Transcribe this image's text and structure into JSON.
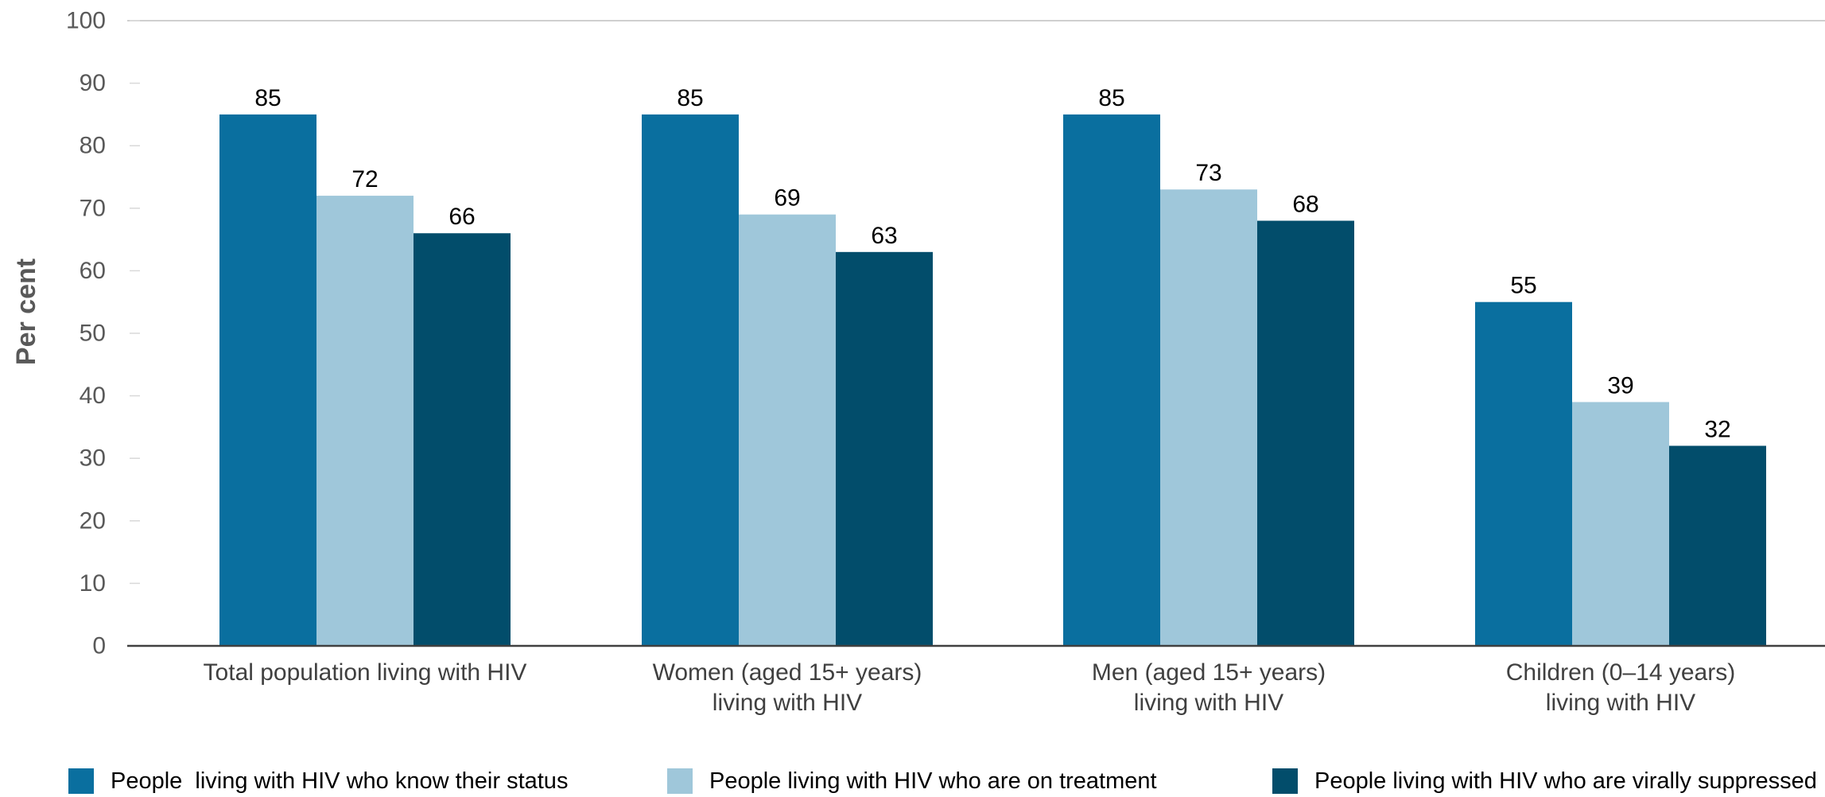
{
  "chart_data": {
    "type": "bar",
    "title": "",
    "xlabel": "",
    "ylabel": "Per cent",
    "ylim": [
      0,
      100
    ],
    "yticks": [
      0,
      10,
      20,
      30,
      40,
      50,
      60,
      70,
      80,
      90,
      100
    ],
    "grid": "top line only",
    "legend_position": "bottom",
    "categories": [
      [
        "Total population living with HIV"
      ],
      [
        "Women (aged 15+ years)",
        "living with HIV"
      ],
      [
        "Men (aged 15+ years)",
        "living with HIV"
      ],
      [
        "Children (0–14 years)",
        "living with HIV"
      ]
    ],
    "series": [
      {
        "name": "People  living with HIV who know their status",
        "color": "#0a6f9f",
        "values": [
          85,
          85,
          85,
          55
        ]
      },
      {
        "name": "People living with HIV who are on treatment",
        "color": "#9fc7da",
        "values": [
          72,
          69,
          73,
          39
        ]
      },
      {
        "name": "People living with HIV who are virally suppressed",
        "color": "#024d6b",
        "values": [
          66,
          63,
          68,
          32
        ]
      }
    ]
  }
}
